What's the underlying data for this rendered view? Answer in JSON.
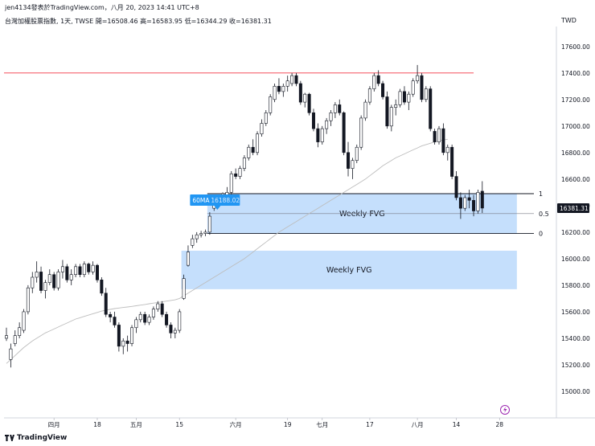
{
  "header": {
    "byline": "jen4134發表於TradingView.com，八月 20, 2023 14:41 UTC+8",
    "symbol_line": "台灣加權股票指數, 1天, TWSE  開=16508.46  高=16583.95  低=16344.29  收=16381.31",
    "currency": "TWD"
  },
  "watermark": {
    "text": "TradingView",
    "icon": "tradingview-logo-icon"
  },
  "toolbar": {
    "replay_icon": "lightning-icon"
  },
  "colors": {
    "up_body": "#ffffff",
    "down_body": "#131722",
    "wick": "#131722",
    "fvg_fill": "#bbd9fb",
    "ma_line": "#bdbdbd",
    "resistance": "#f23645",
    "ma_label": "#2196f3",
    "price_label": "#131722"
  },
  "chart_data": {
    "type": "candlestick",
    "ylim": [
      14800,
      17750
    ],
    "y_ticks": [
      15000,
      15200,
      15400,
      15600,
      15800,
      16000,
      16200,
      16400,
      16600,
      16800,
      17000,
      17200,
      17400,
      17600
    ],
    "y_tick_labels": [
      "15000.00",
      "15200.00",
      "15400.00",
      "15600.00",
      "15800.00",
      "16000.00",
      "16200.00",
      "16400.00",
      "16600.00",
      "16800.00",
      "17000.00",
      "17200.00",
      "17400.00",
      "17600.00"
    ],
    "x_ticks": [
      {
        "label": "四月",
        "i": 11
      },
      {
        "label": "18",
        "i": 21
      },
      {
        "label": "五月",
        "i": 30
      },
      {
        "label": "15",
        "i": 40
      },
      {
        "label": "六月",
        "i": 53
      },
      {
        "label": "19",
        "i": 65
      },
      {
        "label": "七月",
        "i": 73
      },
      {
        "label": "17",
        "i": 84
      },
      {
        "label": "八月",
        "i": 95
      },
      {
        "label": "14",
        "i": 104
      },
      {
        "label": "28",
        "i": 114
      }
    ],
    "candles": [
      [
        15400,
        15480,
        15380,
        15420
      ],
      [
        15240,
        15360,
        15180,
        15320
      ],
      [
        15360,
        15460,
        15340,
        15420
      ],
      [
        15420,
        15520,
        15400,
        15480
      ],
      [
        15460,
        15620,
        15440,
        15600
      ],
      [
        15600,
        15800,
        15580,
        15780
      ],
      [
        15780,
        15900,
        15740,
        15860
      ],
      [
        15860,
        15980,
        15820,
        15900
      ],
      [
        15900,
        15940,
        15740,
        15760
      ],
      [
        15760,
        15840,
        15700,
        15820
      ],
      [
        15820,
        15920,
        15800,
        15880
      ],
      [
        15880,
        15900,
        15760,
        15780
      ],
      [
        15780,
        15920,
        15760,
        15900
      ],
      [
        15900,
        15990,
        15850,
        15940
      ],
      [
        15940,
        15960,
        15820,
        15840
      ],
      [
        15840,
        15920,
        15800,
        15880
      ],
      [
        15880,
        15960,
        15860,
        15940
      ],
      [
        15940,
        15960,
        15860,
        15880
      ],
      [
        15880,
        15980,
        15860,
        15960
      ],
      [
        15960,
        15970,
        15880,
        15900
      ],
      [
        15900,
        15980,
        15880,
        15950
      ],
      [
        15950,
        15960,
        15820,
        15840
      ],
      [
        15840,
        15860,
        15720,
        15740
      ],
      [
        15740,
        15780,
        15560,
        15580
      ],
      [
        15580,
        15600,
        15520,
        15560
      ],
      [
        15560,
        15600,
        15480,
        15500
      ],
      [
        15500,
        15520,
        15300,
        15340
      ],
      [
        15340,
        15400,
        15280,
        15380
      ],
      [
        15380,
        15420,
        15300,
        15360
      ],
      [
        15360,
        15500,
        15340,
        15480
      ],
      [
        15480,
        15560,
        15440,
        15540
      ],
      [
        15540,
        15600,
        15520,
        15580
      ],
      [
        15580,
        15600,
        15500,
        15520
      ],
      [
        15520,
        15580,
        15500,
        15560
      ],
      [
        15560,
        15640,
        15540,
        15620
      ],
      [
        15620,
        15680,
        15600,
        15660
      ],
      [
        15660,
        15680,
        15560,
        15580
      ],
      [
        15580,
        15600,
        15480,
        15500
      ],
      [
        15500,
        15520,
        15400,
        15440
      ],
      [
        15440,
        15480,
        15400,
        15460
      ],
      [
        15460,
        15620,
        15440,
        15600
      ],
      [
        15700,
        15880,
        15690,
        15850
      ],
      [
        15950,
        16100,
        15940,
        16050
      ],
      [
        16100,
        16180,
        16080,
        16150
      ],
      [
        16150,
        16200,
        16120,
        16180
      ],
      [
        16180,
        16210,
        16160,
        16190
      ],
      [
        16190,
        16220,
        16170,
        16200
      ],
      [
        16200,
        16350,
        16180,
        16320
      ],
      [
        16380,
        16460,
        16360,
        16440
      ],
      [
        16440,
        16480,
        16420,
        16460
      ],
      [
        16460,
        16500,
        16440,
        16490
      ],
      [
        16480,
        16540,
        16470,
        16500
      ],
      [
        16500,
        16660,
        16480,
        16640
      ],
      [
        16640,
        16680,
        16600,
        16620
      ],
      [
        16620,
        16700,
        16600,
        16680
      ],
      [
        16680,
        16780,
        16660,
        16760
      ],
      [
        16760,
        16860,
        16740,
        16840
      ],
      [
        16840,
        16900,
        16780,
        16800
      ],
      [
        16800,
        16960,
        16780,
        16940
      ],
      [
        16940,
        17050,
        16920,
        17020
      ],
      [
        17020,
        17120,
        17000,
        17100
      ],
      [
        17100,
        17240,
        17080,
        17220
      ],
      [
        17200,
        17320,
        17180,
        17300
      ],
      [
        17300,
        17360,
        17240,
        17260
      ],
      [
        17260,
        17320,
        17220,
        17300
      ],
      [
        17300,
        17380,
        17260,
        17340
      ],
      [
        17320,
        17400,
        17300,
        17380
      ],
      [
        17380,
        17400,
        17300,
        17320
      ],
      [
        17320,
        17340,
        17160,
        17180
      ],
      [
        17180,
        17250,
        17140,
        17240
      ],
      [
        17240,
        17250,
        17080,
        17100
      ],
      [
        17100,
        17130,
        16960,
        16980
      ],
      [
        16980,
        17020,
        16840,
        16880
      ],
      [
        16880,
        17000,
        16860,
        16980
      ],
      [
        16980,
        17060,
        16940,
        17040
      ],
      [
        17040,
        17120,
        17000,
        17100
      ],
      [
        17100,
        17180,
        17060,
        17160
      ],
      [
        17160,
        17200,
        17080,
        17100
      ],
      [
        17100,
        17110,
        16780,
        16800
      ],
      [
        16800,
        16880,
        16620,
        16680
      ],
      [
        16680,
        16760,
        16600,
        16740
      ],
      [
        16740,
        16860,
        16720,
        16840
      ],
      [
        16840,
        17080,
        16820,
        17060
      ],
      [
        17060,
        17200,
        17040,
        17180
      ],
      [
        17180,
        17300,
        17160,
        17280
      ],
      [
        17280,
        17400,
        17260,
        17380
      ],
      [
        17380,
        17420,
        17300,
        17320
      ],
      [
        17320,
        17340,
        17200,
        17220
      ],
      [
        17220,
        17260,
        16980,
        17000
      ],
      [
        17000,
        17160,
        16960,
        17140
      ],
      [
        17140,
        17200,
        17080,
        17160
      ],
      [
        17160,
        17280,
        17140,
        17260
      ],
      [
        17260,
        17300,
        17160,
        17180
      ],
      [
        17180,
        17260,
        17120,
        17240
      ],
      [
        17240,
        17360,
        17220,
        17340
      ],
      [
        17340,
        17460,
        17320,
        17380
      ],
      [
        17380,
        17400,
        17180,
        17200
      ],
      [
        17200,
        17300,
        17180,
        17280
      ],
      [
        17280,
        17300,
        16960,
        16980
      ],
      [
        16960,
        16980,
        16860,
        16880
      ],
      [
        16880,
        17000,
        16860,
        16980
      ],
      [
        16980,
        17020,
        16780,
        16800
      ],
      [
        16800,
        16860,
        16740,
        16840
      ],
      [
        16840,
        16860,
        16600,
        16620
      ],
      [
        16620,
        16660,
        16440,
        16460
      ],
      [
        16460,
        16500,
        16300,
        16380
      ],
      [
        16380,
        16480,
        16360,
        16460
      ],
      [
        16460,
        16520,
        16380,
        16440
      ],
      [
        16440,
        16480,
        16320,
        16360
      ],
      [
        16360,
        16520,
        16340,
        16500
      ],
      [
        16508.46,
        16583.95,
        16344.29,
        16381.31
      ]
    ],
    "moving_average": {
      "label": "60MA",
      "value_label": "16188.02",
      "values": [
        15210,
        15240,
        15270,
        15300,
        15330,
        15355,
        15380,
        15400,
        15420,
        15440,
        15455,
        15470,
        15485,
        15500,
        15515,
        15530,
        15545,
        15555,
        15565,
        15575,
        15585,
        15595,
        15605,
        15612,
        15618,
        15624,
        15628,
        15632,
        15636,
        15640,
        15645,
        15650,
        15655,
        15660,
        15665,
        15670,
        15675,
        15680,
        15685,
        15690,
        15700,
        15720,
        15740,
        15760,
        15780,
        15800,
        15820,
        15840,
        15860,
        15880,
        15900,
        15920,
        15940,
        15960,
        15980,
        16000,
        16025,
        16050,
        16075,
        16100,
        16125,
        16150,
        16175,
        16200,
        16220,
        16240,
        16260,
        16280,
        16300,
        16320,
        16340,
        16360,
        16380,
        16400,
        16420,
        16440,
        16460,
        16480,
        16500,
        16520,
        16540,
        16560,
        16580,
        16600,
        16625,
        16650,
        16675,
        16700,
        16720,
        16740,
        16760,
        16775,
        16790,
        16805,
        16820,
        16835,
        16850,
        16860,
        16870,
        16880,
        16890,
        16895,
        16900,
        null,
        null,
        null,
        null,
        null,
        null,
        null,
        null,
        null,
        null
      ]
    },
    "resistance_level": 17400,
    "fib_levels": [
      {
        "label": "1",
        "price": 16490
      },
      {
        "label": "0.5",
        "price": 16340
      },
      {
        "label": "0",
        "price": 16190
      }
    ],
    "fvg_zones": [
      {
        "label": "Weekly FVG",
        "top": 16490,
        "bottom": 16190,
        "i_start": 47,
        "i_end": 118
      },
      {
        "label": "Weekly FVG",
        "top": 16060,
        "bottom": 15770,
        "i_start": 41,
        "i_end": 118
      }
    ],
    "last_price_label": "16381.31"
  }
}
